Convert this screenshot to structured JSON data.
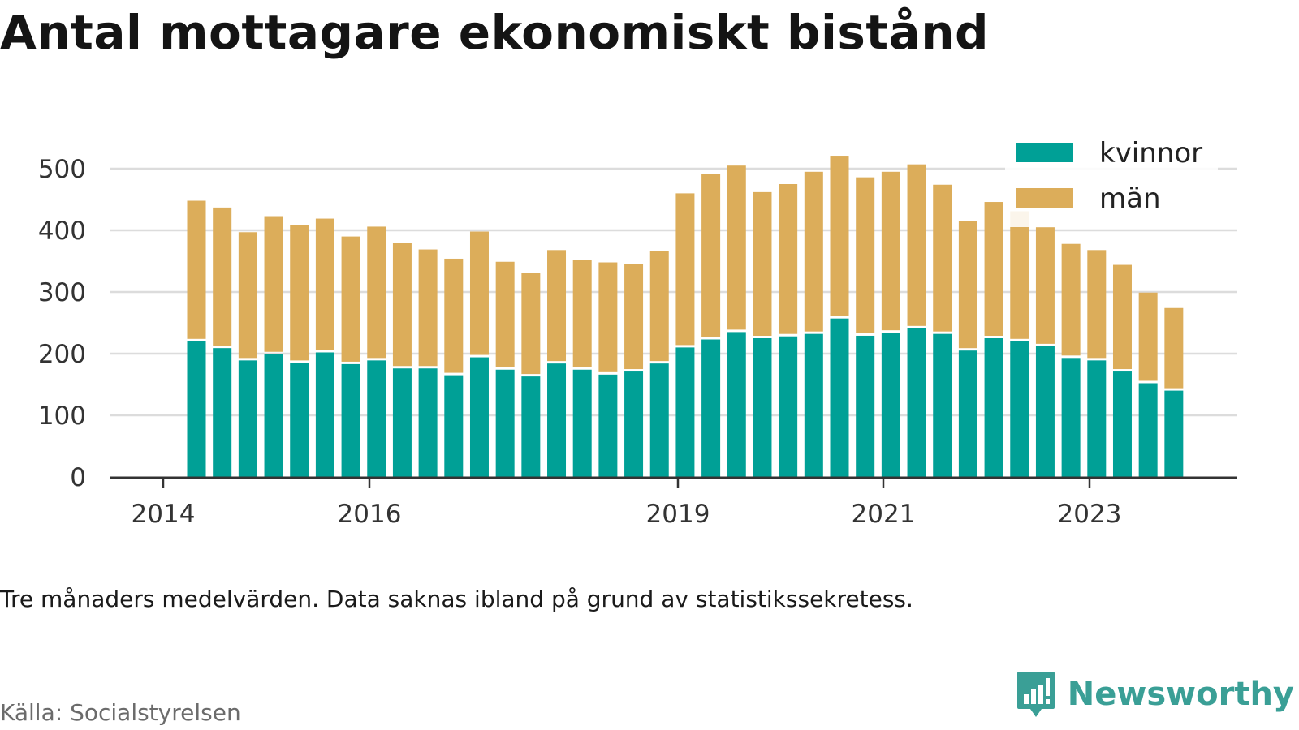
{
  "title": "Antal mottagare ekonomiskt bistånd",
  "caption": "Tre månaders medelvärden. Data saknas ibland på grund av statistikssekretess.",
  "source": "Källa: Socialstyrelsen",
  "brand": {
    "name": "Newsworthy",
    "icon": "bar-chart-bubble-icon"
  },
  "colors": {
    "kvinnor": "#00a096",
    "man": "#dcad5a",
    "grid": "#dcdcdc",
    "axis": "#333333"
  },
  "chart_data": {
    "type": "bar",
    "stacked": true,
    "title": "Antal mottagare ekonomiskt bistånd",
    "xlabel": "",
    "ylabel": "",
    "ylim": [
      0,
      500
    ],
    "yticks": [
      "0",
      "100",
      "200",
      "300",
      "400",
      "500"
    ],
    "xtick_labels": [
      "2014",
      "2016",
      "2019",
      "2021",
      "2023"
    ],
    "legend": {
      "position": "top-right",
      "entries": [
        "kvinnor",
        "män"
      ]
    },
    "grid": true,
    "series": [
      {
        "name": "kvinnor",
        "values": [
          220,
          209,
          189,
          199,
          185,
          202,
          183,
          189,
          176,
          176,
          165,
          194,
          174,
          163,
          184,
          174,
          166,
          171,
          184,
          210,
          223,
          235,
          225,
          228,
          232,
          257,
          229,
          234,
          241,
          232,
          205,
          225,
          220,
          212,
          193,
          189,
          171,
          152,
          140
        ]
      },
      {
        "name": "män",
        "values": [
          228,
          228,
          208,
          224,
          224,
          217,
          207,
          217,
          203,
          193,
          189,
          204,
          175,
          168,
          184,
          178,
          182,
          174,
          182,
          250,
          269,
          270,
          237,
          247,
          263,
          264,
          257,
          261,
          266,
          242,
          210,
          221,
          211,
          193,
          185,
          179,
          173,
          147,
          134
        ]
      }
    ]
  }
}
